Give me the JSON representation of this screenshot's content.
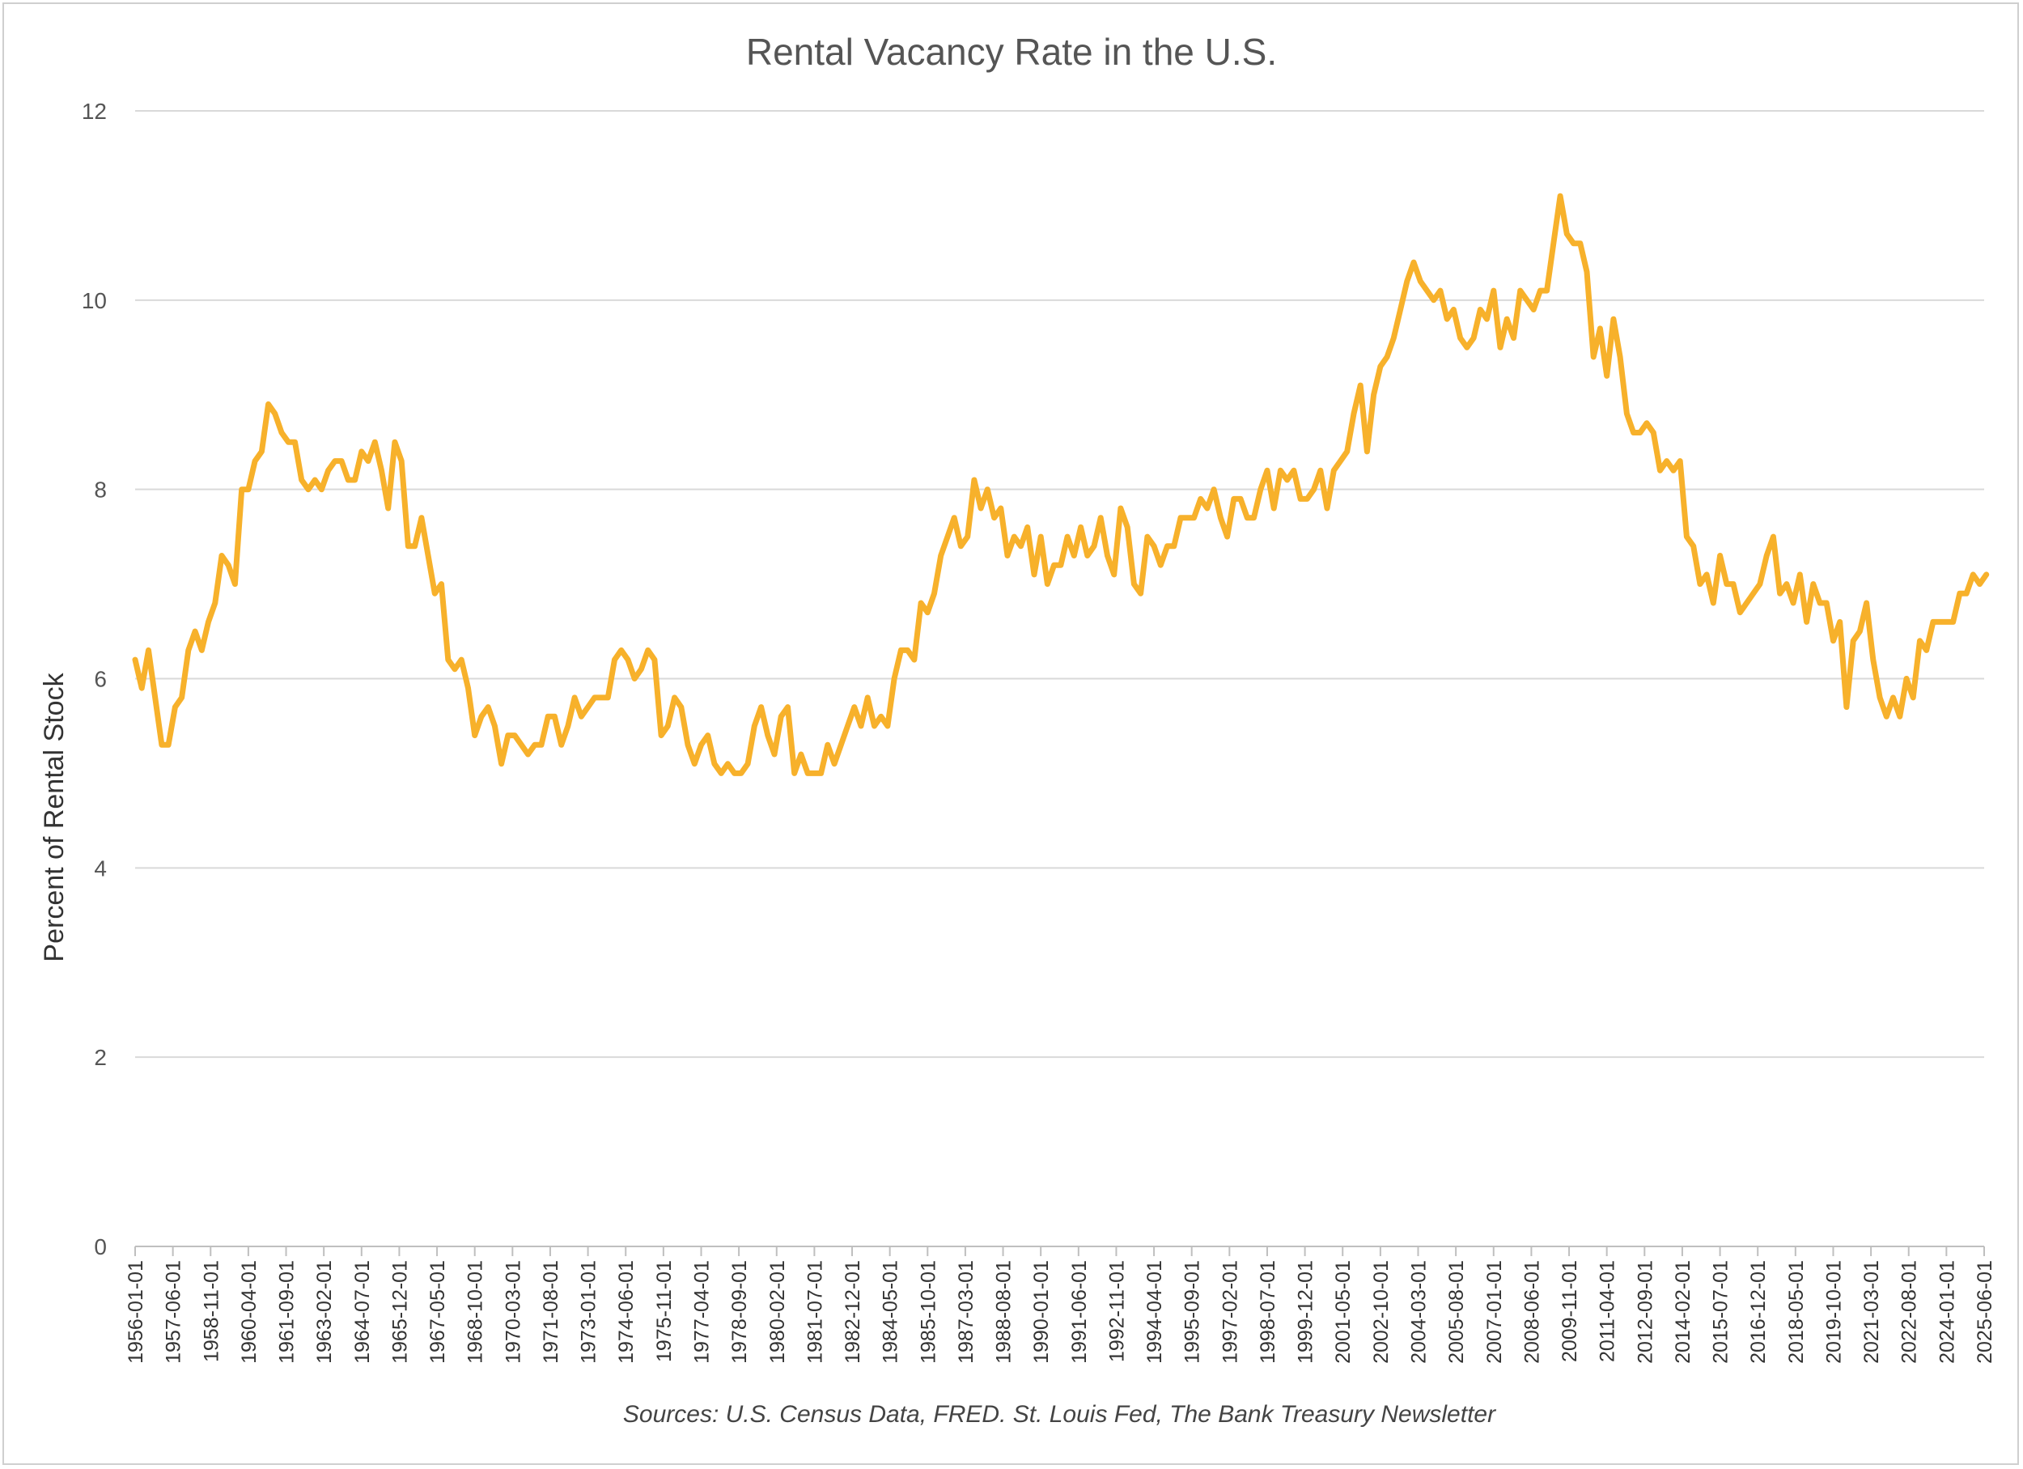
{
  "chart_data": {
    "type": "line",
    "title": "Rental Vacancy Rate in the U.S.",
    "xlabel": "",
    "ylabel": "Percent of Rental Stock",
    "source": "Sources: U.S. Census Data, FRED. St. Louis Fed, The Bank Treasury Newsletter",
    "ylim": [
      0,
      12
    ],
    "yticks": [
      0,
      2,
      4,
      6,
      8,
      10,
      12
    ],
    "grid": true,
    "legend": "none",
    "line_color": "#F7B12B",
    "x_tick_labels": [
      "1956-01-01",
      "1957-06-01",
      "1958-11-01",
      "1960-04-01",
      "1961-09-01",
      "1963-02-01",
      "1964-07-01",
      "1965-12-01",
      "1967-05-01",
      "1968-10-01",
      "1970-03-01",
      "1971-08-01",
      "1973-01-01",
      "1974-06-01",
      "1975-11-01",
      "1977-04-01",
      "1978-09-01",
      "1980-02-01",
      "1981-07-01",
      "1982-12-01",
      "1984-05-01",
      "1985-10-01",
      "1987-03-01",
      "1988-08-01",
      "1990-01-01",
      "1991-06-01",
      "1992-11-01",
      "1994-04-01",
      "1995-09-01",
      "1997-02-01",
      "1998-07-01",
      "1999-12-01",
      "2001-05-01",
      "2002-10-01",
      "2004-03-01",
      "2005-08-01",
      "2007-01-01",
      "2008-06-01",
      "2009-11-01",
      "2011-04-01",
      "2012-09-01",
      "2014-02-01",
      "2015-07-01",
      "2016-12-01",
      "2018-05-01",
      "2019-10-01",
      "2021-03-01",
      "2022-08-01",
      "2024-01-01",
      "2025-06-01"
    ],
    "x_range": [
      "1956-01-01",
      "2025-06-01"
    ],
    "series": [
      {
        "name": "Rental Vacancy Rate",
        "points": [
          [
            1956.0,
            6.2
          ],
          [
            1956.25,
            5.9
          ],
          [
            1956.5,
            6.3
          ],
          [
            1956.75,
            5.8
          ],
          [
            1957.0,
            5.3
          ],
          [
            1957.25,
            5.3
          ],
          [
            1957.5,
            5.7
          ],
          [
            1957.75,
            5.8
          ],
          [
            1958.0,
            6.3
          ],
          [
            1958.25,
            6.5
          ],
          [
            1958.5,
            6.3
          ],
          [
            1958.75,
            6.6
          ],
          [
            1959.0,
            6.8
          ],
          [
            1959.25,
            7.3
          ],
          [
            1959.5,
            7.2
          ],
          [
            1959.75,
            7.0
          ],
          [
            1960.0,
            8.0
          ],
          [
            1960.25,
            8.0
          ],
          [
            1960.5,
            8.3
          ],
          [
            1960.75,
            8.4
          ],
          [
            1961.0,
            8.9
          ],
          [
            1961.25,
            8.8
          ],
          [
            1961.5,
            8.6
          ],
          [
            1961.75,
            8.5
          ],
          [
            1962.0,
            8.5
          ],
          [
            1962.25,
            8.1
          ],
          [
            1962.5,
            8.0
          ],
          [
            1962.75,
            8.1
          ],
          [
            1963.0,
            8.0
          ],
          [
            1963.25,
            8.2
          ],
          [
            1963.5,
            8.3
          ],
          [
            1963.75,
            8.3
          ],
          [
            1964.0,
            8.1
          ],
          [
            1964.25,
            8.1
          ],
          [
            1964.5,
            8.4
          ],
          [
            1964.75,
            8.3
          ],
          [
            1965.0,
            8.5
          ],
          [
            1965.25,
            8.2
          ],
          [
            1965.5,
            7.8
          ],
          [
            1965.75,
            8.5
          ],
          [
            1966.0,
            8.3
          ],
          [
            1966.25,
            7.4
          ],
          [
            1966.5,
            7.4
          ],
          [
            1966.75,
            7.7
          ],
          [
            1967.0,
            7.3
          ],
          [
            1967.25,
            6.9
          ],
          [
            1967.5,
            7.0
          ],
          [
            1967.75,
            6.2
          ],
          [
            1968.0,
            6.1
          ],
          [
            1968.25,
            6.2
          ],
          [
            1968.5,
            5.9
          ],
          [
            1968.75,
            5.4
          ],
          [
            1969.0,
            5.6
          ],
          [
            1969.25,
            5.7
          ],
          [
            1969.5,
            5.5
          ],
          [
            1969.75,
            5.1
          ],
          [
            1970.0,
            5.4
          ],
          [
            1970.25,
            5.4
          ],
          [
            1970.5,
            5.3
          ],
          [
            1970.75,
            5.2
          ],
          [
            1971.0,
            5.3
          ],
          [
            1971.25,
            5.3
          ],
          [
            1971.5,
            5.6
          ],
          [
            1971.75,
            5.6
          ],
          [
            1972.0,
            5.3
          ],
          [
            1972.25,
            5.5
          ],
          [
            1972.5,
            5.8
          ],
          [
            1972.75,
            5.6
          ],
          [
            1973.0,
            5.7
          ],
          [
            1973.25,
            5.8
          ],
          [
            1973.5,
            5.8
          ],
          [
            1973.75,
            5.8
          ],
          [
            1974.0,
            6.2
          ],
          [
            1974.25,
            6.3
          ],
          [
            1974.5,
            6.2
          ],
          [
            1974.75,
            6.0
          ],
          [
            1975.0,
            6.1
          ],
          [
            1975.25,
            6.3
          ],
          [
            1975.5,
            6.2
          ],
          [
            1975.75,
            5.4
          ],
          [
            1976.0,
            5.5
          ],
          [
            1976.25,
            5.8
          ],
          [
            1976.5,
            5.7
          ],
          [
            1976.75,
            5.3
          ],
          [
            1977.0,
            5.1
          ],
          [
            1977.25,
            5.3
          ],
          [
            1977.5,
            5.4
          ],
          [
            1977.75,
            5.1
          ],
          [
            1978.0,
            5.0
          ],
          [
            1978.25,
            5.1
          ],
          [
            1978.5,
            5.0
          ],
          [
            1978.75,
            5.0
          ],
          [
            1979.0,
            5.1
          ],
          [
            1979.25,
            5.5
          ],
          [
            1979.5,
            5.7
          ],
          [
            1979.75,
            5.4
          ],
          [
            1980.0,
            5.2
          ],
          [
            1980.25,
            5.6
          ],
          [
            1980.5,
            5.7
          ],
          [
            1980.75,
            5.0
          ],
          [
            1981.0,
            5.2
          ],
          [
            1981.25,
            5.0
          ],
          [
            1981.5,
            5.0
          ],
          [
            1981.75,
            5.0
          ],
          [
            1982.0,
            5.3
          ],
          [
            1982.25,
            5.1
          ],
          [
            1982.5,
            5.3
          ],
          [
            1982.75,
            5.5
          ],
          [
            1983.0,
            5.7
          ],
          [
            1983.25,
            5.5
          ],
          [
            1983.5,
            5.8
          ],
          [
            1983.75,
            5.5
          ],
          [
            1984.0,
            5.6
          ],
          [
            1984.25,
            5.5
          ],
          [
            1984.5,
            6.0
          ],
          [
            1984.75,
            6.3
          ],
          [
            1985.0,
            6.3
          ],
          [
            1985.25,
            6.2
          ],
          [
            1985.5,
            6.8
          ],
          [
            1985.75,
            6.7
          ],
          [
            1986.0,
            6.9
          ],
          [
            1986.25,
            7.3
          ],
          [
            1986.5,
            7.5
          ],
          [
            1986.75,
            7.7
          ],
          [
            1987.0,
            7.4
          ],
          [
            1987.25,
            7.5
          ],
          [
            1987.5,
            8.1
          ],
          [
            1987.75,
            7.8
          ],
          [
            1988.0,
            8.0
          ],
          [
            1988.25,
            7.7
          ],
          [
            1988.5,
            7.8
          ],
          [
            1988.75,
            7.3
          ],
          [
            1989.0,
            7.5
          ],
          [
            1989.25,
            7.4
          ],
          [
            1989.5,
            7.6
          ],
          [
            1989.75,
            7.1
          ],
          [
            1990.0,
            7.5
          ],
          [
            1990.25,
            7.0
          ],
          [
            1990.5,
            7.2
          ],
          [
            1990.75,
            7.2
          ],
          [
            1991.0,
            7.5
          ],
          [
            1991.25,
            7.3
          ],
          [
            1991.5,
            7.6
          ],
          [
            1991.75,
            7.3
          ],
          [
            1992.0,
            7.4
          ],
          [
            1992.25,
            7.7
          ],
          [
            1992.5,
            7.3
          ],
          [
            1992.75,
            7.1
          ],
          [
            1993.0,
            7.8
          ],
          [
            1993.25,
            7.6
          ],
          [
            1993.5,
            7.0
          ],
          [
            1993.75,
            6.9
          ],
          [
            1994.0,
            7.5
          ],
          [
            1994.25,
            7.4
          ],
          [
            1994.5,
            7.2
          ],
          [
            1994.75,
            7.4
          ],
          [
            1995.0,
            7.4
          ],
          [
            1995.25,
            7.7
          ],
          [
            1995.5,
            7.7
          ],
          [
            1995.75,
            7.7
          ],
          [
            1996.0,
            7.9
          ],
          [
            1996.25,
            7.8
          ],
          [
            1996.5,
            8.0
          ],
          [
            1996.75,
            7.7
          ],
          [
            1997.0,
            7.5
          ],
          [
            1997.25,
            7.9
          ],
          [
            1997.5,
            7.9
          ],
          [
            1997.75,
            7.7
          ],
          [
            1998.0,
            7.7
          ],
          [
            1998.25,
            8.0
          ],
          [
            1998.5,
            8.2
          ],
          [
            1998.75,
            7.8
          ],
          [
            1999.0,
            8.2
          ],
          [
            1999.25,
            8.1
          ],
          [
            1999.5,
            8.2
          ],
          [
            1999.75,
            7.9
          ],
          [
            2000.0,
            7.9
          ],
          [
            2000.25,
            8.0
          ],
          [
            2000.5,
            8.2
          ],
          [
            2000.75,
            7.8
          ],
          [
            2001.0,
            8.2
          ],
          [
            2001.25,
            8.3
          ],
          [
            2001.5,
            8.4
          ],
          [
            2001.75,
            8.8
          ],
          [
            2002.0,
            9.1
          ],
          [
            2002.25,
            8.4
          ],
          [
            2002.5,
            9.0
          ],
          [
            2002.75,
            9.3
          ],
          [
            2003.0,
            9.4
          ],
          [
            2003.25,
            9.6
          ],
          [
            2003.5,
            9.9
          ],
          [
            2003.75,
            10.2
          ],
          [
            2004.0,
            10.4
          ],
          [
            2004.25,
            10.2
          ],
          [
            2004.5,
            10.1
          ],
          [
            2004.75,
            10.0
          ],
          [
            2005.0,
            10.1
          ],
          [
            2005.25,
            9.8
          ],
          [
            2005.5,
            9.9
          ],
          [
            2005.75,
            9.6
          ],
          [
            2006.0,
            9.5
          ],
          [
            2006.25,
            9.6
          ],
          [
            2006.5,
            9.9
          ],
          [
            2006.75,
            9.8
          ],
          [
            2007.0,
            10.1
          ],
          [
            2007.25,
            9.5
          ],
          [
            2007.5,
            9.8
          ],
          [
            2007.75,
            9.6
          ],
          [
            2008.0,
            10.1
          ],
          [
            2008.25,
            10.0
          ],
          [
            2008.5,
            9.9
          ],
          [
            2008.75,
            10.1
          ],
          [
            2009.0,
            10.1
          ],
          [
            2009.25,
            10.6
          ],
          [
            2009.5,
            11.1
          ],
          [
            2009.75,
            10.7
          ],
          [
            2010.0,
            10.6
          ],
          [
            2010.25,
            10.6
          ],
          [
            2010.5,
            10.3
          ],
          [
            2010.75,
            9.4
          ],
          [
            2011.0,
            9.7
          ],
          [
            2011.25,
            9.2
          ],
          [
            2011.5,
            9.8
          ],
          [
            2011.75,
            9.4
          ],
          [
            2012.0,
            8.8
          ],
          [
            2012.25,
            8.6
          ],
          [
            2012.5,
            8.6
          ],
          [
            2012.75,
            8.7
          ],
          [
            2013.0,
            8.6
          ],
          [
            2013.25,
            8.2
          ],
          [
            2013.5,
            8.3
          ],
          [
            2013.75,
            8.2
          ],
          [
            2014.0,
            8.3
          ],
          [
            2014.25,
            7.5
          ],
          [
            2014.5,
            7.4
          ],
          [
            2014.75,
            7.0
          ],
          [
            2015.0,
            7.1
          ],
          [
            2015.25,
            6.8
          ],
          [
            2015.5,
            7.3
          ],
          [
            2015.75,
            7.0
          ],
          [
            2016.0,
            7.0
          ],
          [
            2016.25,
            6.7
          ],
          [
            2016.5,
            6.8
          ],
          [
            2016.75,
            6.9
          ],
          [
            2017.0,
            7.0
          ],
          [
            2017.25,
            7.3
          ],
          [
            2017.5,
            7.5
          ],
          [
            2017.75,
            6.9
          ],
          [
            2018.0,
            7.0
          ],
          [
            2018.25,
            6.8
          ],
          [
            2018.5,
            7.1
          ],
          [
            2018.75,
            6.6
          ],
          [
            2019.0,
            7.0
          ],
          [
            2019.25,
            6.8
          ],
          [
            2019.5,
            6.8
          ],
          [
            2019.75,
            6.4
          ],
          [
            2020.0,
            6.6
          ],
          [
            2020.25,
            5.7
          ],
          [
            2020.5,
            6.4
          ],
          [
            2020.75,
            6.5
          ],
          [
            2021.0,
            6.8
          ],
          [
            2021.25,
            6.2
          ],
          [
            2021.5,
            5.8
          ],
          [
            2021.75,
            5.6
          ],
          [
            2022.0,
            5.8
          ],
          [
            2022.25,
            5.6
          ],
          [
            2022.5,
            6.0
          ],
          [
            2022.75,
            5.8
          ],
          [
            2023.0,
            6.4
          ],
          [
            2023.25,
            6.3
          ],
          [
            2023.5,
            6.6
          ],
          [
            2023.75,
            6.6
          ],
          [
            2024.0,
            6.6
          ],
          [
            2024.25,
            6.6
          ],
          [
            2024.5,
            6.9
          ],
          [
            2024.75,
            6.9
          ],
          [
            2025.0,
            7.1
          ],
          [
            2025.25,
            7.0
          ],
          [
            2025.5,
            7.1
          ]
        ]
      }
    ]
  }
}
